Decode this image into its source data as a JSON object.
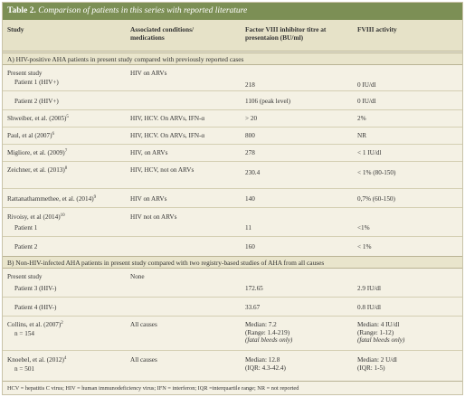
{
  "table": {
    "number": "Table 2.",
    "title": "Comparison of patients in this series with reported literature",
    "headers": {
      "study": "Study",
      "conditions_1": "Associated conditions/",
      "conditions_2": "medications",
      "titre_1": "Factor VIII inhibitor titre at",
      "titre_2": "presentaion (BU/ml)",
      "fviii": "FVIII activity"
    },
    "section_a": "A) HIV-positive AHA patients in present study compared with previously reported cases",
    "section_b": "B) Non-HIV-infected AHA patients in present study compared with two registry-based studies of AHA from all causes",
    "rows_a": {
      "present_study": "Present study",
      "p1_name": "Patient 1 (HIV+)",
      "p1_cond": "HIV on ARVs",
      "p1_titre": "218",
      "p1_fviii": "0 IU/dl",
      "p2_name": "Patient 2 (HIV+)",
      "p2_titre": "1106 (peak level)",
      "p2_fviii": "0 IU/dl",
      "shw_name": "Shweiber, et al. (2005)",
      "shw_ref": "5",
      "shw_cond": "HIV, HCV. On ARVs, IFN-α",
      "shw_titre": "> 20",
      "shw_fviii": "2%",
      "paul_name": "Paul, et al (2007)",
      "paul_ref": "6",
      "paul_cond": "HIV, HCV. On ARVs, IFN-α",
      "paul_titre": "800",
      "paul_fviii": "NR",
      "mig_name": "Migliore, et al. (2009)",
      "mig_ref": "7",
      "mig_cond": "HIV, on ARVs",
      "mig_titre": "278",
      "mig_fviii": "< 1 IU/dl",
      "zei_name": "Zeichner, et al. (2013)",
      "zei_ref": "8",
      "zei_cond": "HIV, HCV, not on ARVs",
      "zei_titre": "230.4",
      "zei_fviii": "< 1% (80-150)",
      "rat_name": "Rattanathammethee, et al. (2014)",
      "rat_ref": "9",
      "rat_cond": "HIV on ARVs",
      "rat_titre": "140",
      "rat_fviii": "0,7% (60-150)",
      "riv_name": "Rivoisy, et al (2014)",
      "riv_ref": "10",
      "riv_cond": "HIV not on ARVs",
      "riv_p1": "Patient 1",
      "riv_p1_titre": "11",
      "riv_p1_fviii": "<1%",
      "riv_p2": "Patient 2",
      "riv_p2_titre": "160",
      "riv_p2_fviii": "< 1%"
    },
    "rows_b": {
      "present_study": "Present study",
      "present_cond": "None",
      "p3_name": "Patient 3 (HIV-)",
      "p3_titre": "172.65",
      "p3_fviii": "2.9 IU/dl",
      "p4_name": "Patient 4 (HIV-)",
      "p4_titre": "33.67",
      "p4_fviii": "0.8 IU/dl",
      "col_name": "Collins, et al. (2007)",
      "col_ref": "2",
      "col_n": "n = 154",
      "col_cond": "All causes",
      "col_t1": "Median: 7.2",
      "col_t2": "(Range: 1.4-219)",
      "col_t3": "(fatal bleeds only)",
      "col_f1": "Median: 4 IU/dl",
      "col_f2": "(Range: 1-12)",
      "col_f3": "(fatal bleeds only)",
      "kno_name": "Knoebel, et al. (2012)",
      "kno_ref": "4",
      "kno_n": "n = 501",
      "kno_cond": "All causes",
      "kno_t1": "Median: 12.8",
      "kno_t2": "(IQR: 4.3-42.4)",
      "kno_f1": "Median: 2 U/dl",
      "kno_f2": "(IQR: 1-5)"
    },
    "footer": "HCV = hepatitis C virus; HIV = human immunodeficiency virus; IFN = interferon; IQR =interquartile range; NR = not reported"
  },
  "colors": {
    "title_bar": "#7c8f55",
    "background": "#f4f1e4",
    "header_band": "#e6e2c8"
  }
}
